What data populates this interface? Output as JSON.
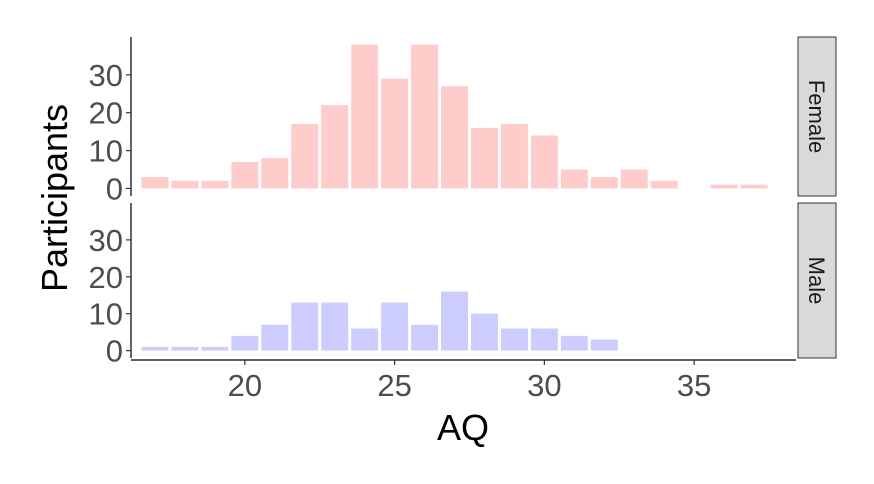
{
  "chart_data": {
    "type": "bar",
    "xlabel": "AQ",
    "ylabel": "Participants",
    "xlim": [
      16.2,
      38.4
    ],
    "ylim": [
      -2,
      40
    ],
    "x_ticks": [
      20,
      25,
      30,
      35
    ],
    "y_ticks": [
      0,
      10,
      20,
      30
    ],
    "grid": false,
    "legend": "none",
    "x": [
      17,
      18,
      19,
      20,
      21,
      22,
      23,
      24,
      25,
      26,
      27,
      28,
      29,
      30,
      31,
      32,
      33,
      34,
      35,
      36,
      37
    ],
    "series": [
      {
        "name": "Female",
        "color": "#ffcccc",
        "values": [
          3,
          2,
          2,
          7,
          8,
          17,
          22,
          38,
          29,
          38,
          27,
          16,
          17,
          14,
          5,
          3,
          5,
          2,
          0,
          1,
          1
        ]
      },
      {
        "name": "Male",
        "color": "#ccccff",
        "values": [
          1,
          1,
          1,
          4,
          7,
          13,
          13,
          6,
          13,
          7,
          16,
          10,
          6,
          6,
          4,
          3,
          0,
          0,
          0,
          0,
          0
        ]
      }
    ]
  }
}
